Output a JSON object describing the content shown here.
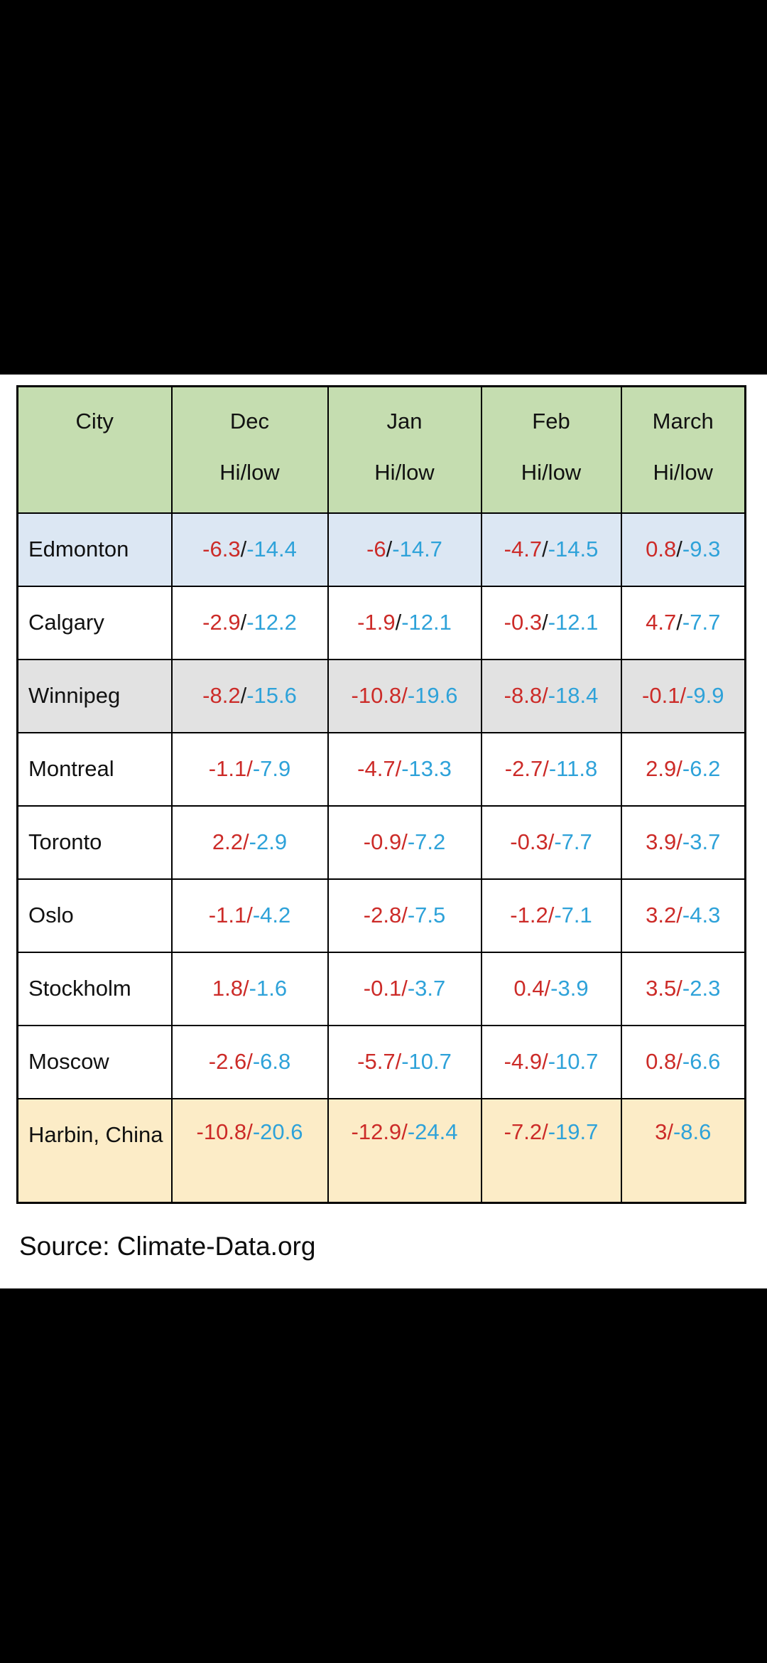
{
  "colors": {
    "page_bg": "#000000",
    "panel_bg": "#ffffff",
    "header_bg": "#c5ddb0",
    "row_blue_bg": "#dce7f3",
    "row_gray_bg": "#e2e2e2",
    "row_cream_bg": "#fcecc7",
    "hi_red": "#cc2b28",
    "low_blue": "#2ea2d9",
    "slash_dark": "#1b1b1b",
    "border": "#000000"
  },
  "glyphs": {
    "slash": "/"
  },
  "table": {
    "headers": [
      {
        "label": "City",
        "sub": ""
      },
      {
        "label": "Dec",
        "sub": "Hi/low"
      },
      {
        "label": "Jan",
        "sub": "Hi/low"
      },
      {
        "label": "Feb",
        "sub": "Hi/low"
      },
      {
        "label": "March",
        "sub": "Hi/low"
      }
    ],
    "rows": [
      {
        "city": "Edmonton",
        "row_class": "row-blue",
        "cells": [
          {
            "hi": "-6.3",
            "low": "-14.4",
            "sc": "dark"
          },
          {
            "hi": "-6",
            "low": "-14.7",
            "sc": "dark"
          },
          {
            "hi": "-4.7",
            "low": "-14.5",
            "sc": "dark"
          },
          {
            "hi": "0.8",
            "low": "-9.3",
            "sc": "dark"
          }
        ]
      },
      {
        "city": "Calgary",
        "row_class": "row-default",
        "cells": [
          {
            "hi": "-2.9",
            "low": "-12.2",
            "sc": "dark"
          },
          {
            "hi": "-1.9",
            "low": "-12.1",
            "sc": "dark"
          },
          {
            "hi": "-0.3",
            "low": "-12.1",
            "sc": "dark"
          },
          {
            "hi": "4.7",
            "low": "-7.7",
            "sc": "dark"
          }
        ]
      },
      {
        "city": "Winnipeg",
        "row_class": "row-gray",
        "cells": [
          {
            "hi": "-8.2",
            "low": "-15.6",
            "sc": "dark"
          },
          {
            "hi": "-10.8",
            "low": "-19.6",
            "sc": "red"
          },
          {
            "hi": "-8.8",
            "low": "-18.4",
            "sc": "red"
          },
          {
            "hi": "-0.1",
            "low": "-9.9",
            "sc": "red"
          }
        ]
      },
      {
        "city": "Montreal",
        "row_class": "row-default",
        "cells": [
          {
            "hi": "-1.1",
            "low": "-7.9",
            "sc": "red"
          },
          {
            "hi": "-4.7",
            "low": "-13.3",
            "sc": "red"
          },
          {
            "hi": "-2.7",
            "low": "-11.8",
            "sc": "red"
          },
          {
            "hi": "2.9",
            "low": "-6.2",
            "sc": "red"
          }
        ]
      },
      {
        "city": "Toronto",
        "row_class": "row-default",
        "cells": [
          {
            "hi": "2.2",
            "low": "-2.9",
            "sc": "red"
          },
          {
            "hi": "-0.9",
            "low": "-7.2",
            "sc": "red"
          },
          {
            "hi": "-0.3",
            "low": "-7.7",
            "sc": "red"
          },
          {
            "hi": "3.9",
            "low": "-3.7",
            "sc": "red"
          }
        ]
      },
      {
        "city": "Oslo",
        "row_class": "row-default",
        "cells": [
          {
            "hi": "-1.1",
            "low": "-4.2",
            "sc": "red"
          },
          {
            "hi": "-2.8",
            "low": "-7.5",
            "sc": "red"
          },
          {
            "hi": "-1.2",
            "low": "-7.1",
            "sc": "red"
          },
          {
            "hi": "3.2",
            "low": "-4.3",
            "sc": "red"
          }
        ]
      },
      {
        "city": "Stockholm",
        "row_class": "row-default",
        "cells": [
          {
            "hi": "1.8",
            "low": "-1.6",
            "sc": "red"
          },
          {
            "hi": "-0.1",
            "low": "-3.7",
            "sc": "red"
          },
          {
            "hi": "0.4",
            "low": "-3.9",
            "sc": "red"
          },
          {
            "hi": "3.5",
            "low": "-2.3",
            "sc": "red"
          }
        ]
      },
      {
        "city": "Moscow",
        "row_class": "row-default",
        "cells": [
          {
            "hi": "-2.6",
            "low": "-6.8",
            "sc": "red"
          },
          {
            "hi": "-5.7",
            "low": "-10.7",
            "sc": "red"
          },
          {
            "hi": "-4.9",
            "low": "-10.7",
            "sc": "red"
          },
          {
            "hi": "0.8",
            "low": "-6.6",
            "sc": "red"
          }
        ]
      },
      {
        "city": "Harbin, China",
        "row_class": "row-cream row-top",
        "cells": [
          {
            "hi": "-10.8",
            "low": "-20.6",
            "sc": "red"
          },
          {
            "hi": "-12.9",
            "low": "-24.4",
            "sc": "red"
          },
          {
            "hi": "-7.2",
            "low": "-19.7",
            "sc": "red"
          },
          {
            "hi": "3",
            "low": "-8.6",
            "sc": "red"
          }
        ]
      }
    ]
  },
  "source": {
    "text": "Source: Climate-Data.org"
  },
  "chart_data": {
    "type": "table",
    "title": "City winter temperatures, Hi/low (°C)",
    "columns": [
      "City",
      "Dec Hi/low",
      "Jan Hi/low",
      "Feb Hi/low",
      "March Hi/low"
    ],
    "rows": [
      [
        "Edmonton",
        "-6.3/-14.4",
        "-6/-14.7",
        "-4.7/-14.5",
        "0.8/-9.3"
      ],
      [
        "Calgary",
        "-2.9/-12.2",
        "-1.9/-12.1",
        "-0.3/-12.1",
        "4.7/-7.7"
      ],
      [
        "Winnipeg",
        "-8.2/-15.6",
        "-10.8/-19.6",
        "-8.8/-18.4",
        "-0.1/-9.9"
      ],
      [
        "Montreal",
        "-1.1/-7.9",
        "-4.7/-13.3",
        "-2.7/-11.8",
        "2.9/-6.2"
      ],
      [
        "Toronto",
        "2.2/-2.9",
        "-0.9/-7.2",
        "-0.3/-7.7",
        "3.9/-3.7"
      ],
      [
        "Oslo",
        "-1.1/-4.2",
        "-2.8/-7.5",
        "-1.2/-7.1",
        "3.2/-4.3"
      ],
      [
        "Stockholm",
        "1.8/-1.6",
        "-0.1/-3.7",
        "0.4/-3.9",
        "3.5/-2.3"
      ],
      [
        "Moscow",
        "-2.6/-6.8",
        "-5.7/-10.7",
        "-4.9/-10.7",
        "0.8/-6.6"
      ],
      [
        "Harbin, China",
        "-10.8/-20.6",
        "-12.9/-24.4",
        "-7.2/-19.7",
        "3/-8.6"
      ]
    ],
    "annotations": [
      "Source: Climate-Data.org"
    ],
    "legend_position": "none",
    "notes": "High values red, low values blue; header row green; Edmonton row light blue, Winnipeg row gray, Harbin row cream"
  }
}
